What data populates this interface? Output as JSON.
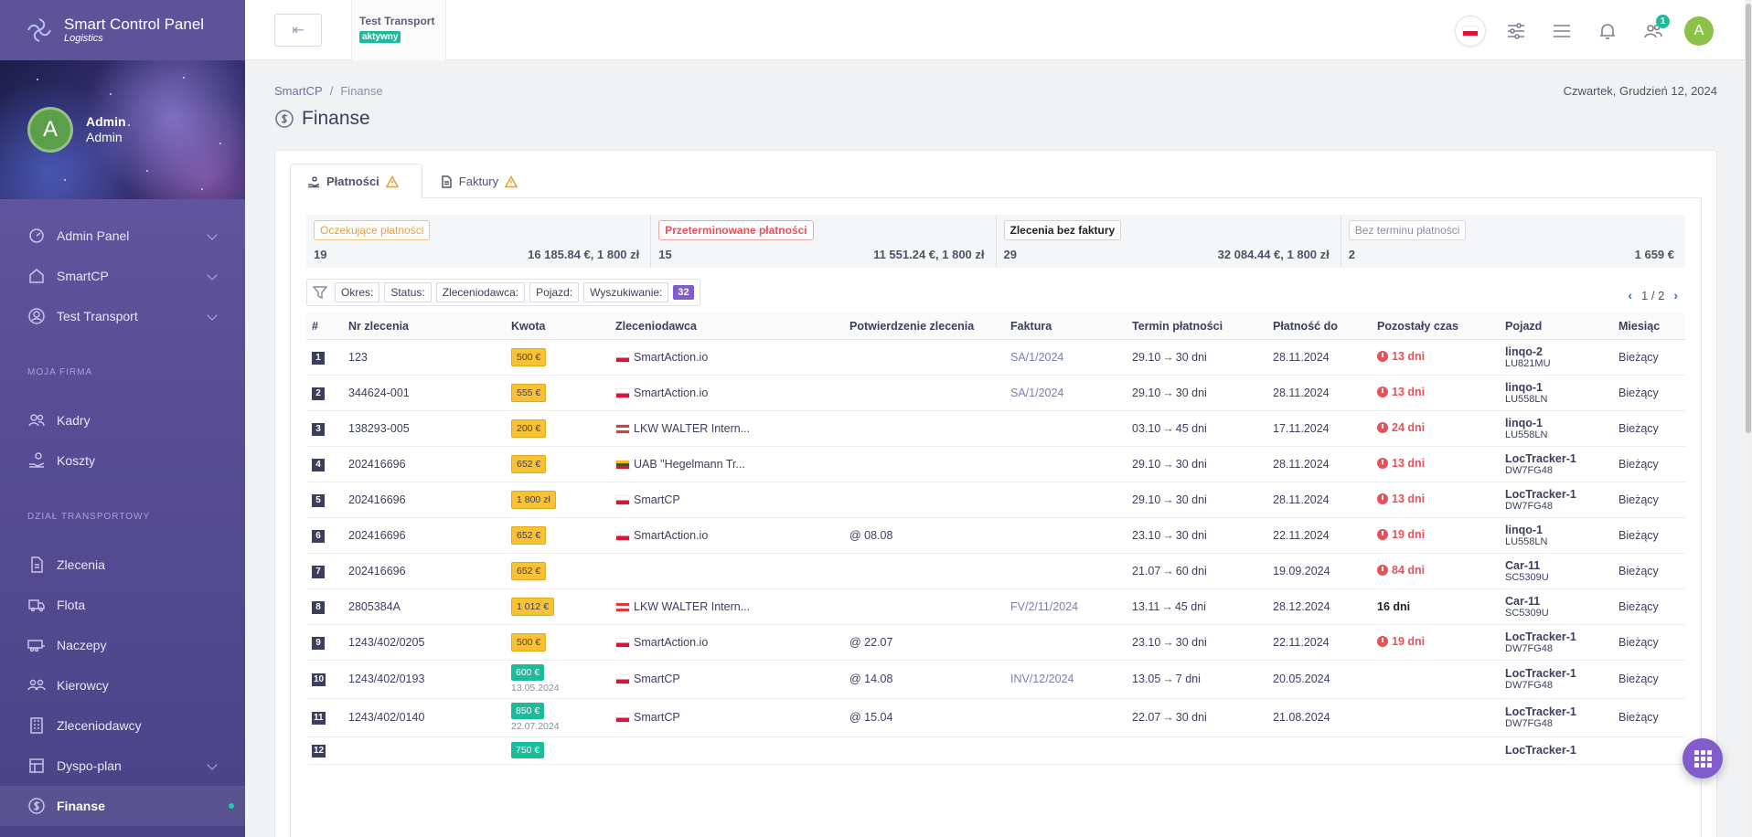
{
  "brand": {
    "title": "Smart Control Panel",
    "subtitle": "Logistics"
  },
  "profile": {
    "initial": "A",
    "name": "Admin",
    "role": "Admin"
  },
  "nav": {
    "top": [
      {
        "label": "Admin Panel",
        "icon": "dashboard-icon",
        "chevron": true
      },
      {
        "label": "SmartCP",
        "icon": "home-icon",
        "chevron": true
      },
      {
        "label": "Test Transport",
        "icon": "user-circle-icon",
        "chevron": true
      }
    ],
    "section1": "MOJA FIRMA",
    "firma": [
      {
        "label": "Kadry",
        "icon": "users-icon"
      },
      {
        "label": "Koszty",
        "icon": "hand-coins-icon"
      }
    ],
    "section2": "DZIAŁ TRANSPORTOWY",
    "transport": [
      {
        "label": "Zlecenia",
        "icon": "file-icon"
      },
      {
        "label": "Flota",
        "icon": "truck-icon"
      },
      {
        "label": "Naczepy",
        "icon": "trailer-icon"
      },
      {
        "label": "Kierowcy",
        "icon": "drivers-icon"
      },
      {
        "label": "Zleceniodawcy",
        "icon": "building-icon"
      },
      {
        "label": "Dyspo-plan",
        "icon": "plan-icon",
        "chevron": true
      },
      {
        "label": "Finanse",
        "icon": "dollar-icon",
        "active": true
      }
    ]
  },
  "topbar": {
    "back_icon": "⇤",
    "company_name": "Test Transport",
    "company_status": "aktywny",
    "notifications_badge": "1",
    "user_initial": "A"
  },
  "breadcrumb": {
    "root": "SmartCP",
    "sep": "/",
    "current": "Finanse"
  },
  "date": "Czwartek, Grudzień 12, 2024",
  "page_title": "Finanse",
  "tabs": [
    {
      "label": "Płatności",
      "active": true
    },
    {
      "label": "Faktury",
      "active": false
    }
  ],
  "summary": [
    {
      "label": "Oczekujące płatności",
      "count": "19",
      "amount": "16 185.84 €, 1 800 zł",
      "style": "orange"
    },
    {
      "label": "Przeterminowane płatności",
      "count": "15",
      "amount": "11 551.24 €, 1 800 zł",
      "style": "red"
    },
    {
      "label": "Zlecenia bez faktury",
      "count": "29",
      "amount": "32 084.44 €, 1 800 zł",
      "style": "dark"
    },
    {
      "label": "Bez terminu płatności",
      "count": "2",
      "amount": "1 659 €",
      "style": "gray"
    }
  ],
  "filters": {
    "chips": [
      "Okres:",
      "Status:",
      "Zleceniodawca:",
      "Pojazd:",
      "Wyszukiwanie:"
    ],
    "count": "32"
  },
  "pager": {
    "prev": "‹",
    "text": "1 / 2",
    "next": "›"
  },
  "columns": [
    "#",
    "Nr zlecenia",
    "Kwota",
    "Zleceniodawca",
    "Potwierdzenie zlecenia",
    "Faktura",
    "Termin płatności",
    "Płatność do",
    "Pozostały czas",
    "Pojazd",
    "Miesiąc"
  ],
  "rows": [
    {
      "n": "1",
      "order": "123",
      "amount": "500 €",
      "amount_style": "warn",
      "amount_date": "",
      "flag": "pl",
      "client": "SmartAction.io",
      "confirm": "",
      "invoice": "SA/1/2024",
      "term_from": "29.10",
      "term_days": "30 dni",
      "due": "28.11.2024",
      "remain": "13 dni",
      "remain_style": "late",
      "veh": "linqo-2",
      "plate": "LU821MU",
      "month": "Bieżący"
    },
    {
      "n": "2",
      "order": "344624-001",
      "amount": "555 €",
      "amount_style": "warn",
      "amount_date": "",
      "flag": "pl",
      "client": "SmartAction.io",
      "confirm": "",
      "invoice": "SA/1/2024",
      "term_from": "29.10",
      "term_days": "30 dni",
      "due": "28.11.2024",
      "remain": "13 dni",
      "remain_style": "late",
      "veh": "linqo-1",
      "plate": "LU558LN",
      "month": "Bieżący"
    },
    {
      "n": "3",
      "order": "138293-005",
      "amount": "200 €",
      "amount_style": "warn",
      "amount_date": "",
      "flag": "at",
      "client": "LKW WALTER Intern...",
      "confirm": "",
      "invoice": "",
      "term_from": "03.10",
      "term_days": "45 dni",
      "due": "17.11.2024",
      "remain": "24 dni",
      "remain_style": "late",
      "veh": "linqo-1",
      "plate": "LU558LN",
      "month": "Bieżący"
    },
    {
      "n": "4",
      "order": "202416696",
      "amount": "652 €",
      "amount_style": "warn",
      "amount_date": "",
      "flag": "lt",
      "client": "UAB \"Hegelmann Tr...",
      "confirm": "",
      "invoice": "",
      "term_from": "29.10",
      "term_days": "30 dni",
      "due": "28.11.2024",
      "remain": "13 dni",
      "remain_style": "late",
      "veh": "LocTracker-1",
      "plate": "DW7FG48",
      "month": "Bieżący"
    },
    {
      "n": "5",
      "order": "202416696",
      "amount": "1 800 zł",
      "amount_style": "warn",
      "amount_date": "",
      "flag": "pl",
      "client": "SmartCP",
      "confirm": "",
      "invoice": "",
      "term_from": "29.10",
      "term_days": "30 dni",
      "due": "28.11.2024",
      "remain": "13 dni",
      "remain_style": "late",
      "veh": "LocTracker-1",
      "plate": "DW7FG48",
      "month": "Bieżący"
    },
    {
      "n": "6",
      "order": "202416696",
      "amount": "652 €",
      "amount_style": "warn",
      "amount_date": "",
      "flag": "pl",
      "client": "SmartAction.io",
      "confirm": "@ 08.08",
      "invoice": "",
      "term_from": "23.10",
      "term_days": "30 dni",
      "due": "22.11.2024",
      "remain": "19 dni",
      "remain_style": "late",
      "veh": "linqo-1",
      "plate": "LU558LN",
      "month": "Bieżący"
    },
    {
      "n": "7",
      "order": "202416696",
      "amount": "652 €",
      "amount_style": "warn",
      "amount_date": "",
      "flag": "",
      "client": "",
      "confirm": "",
      "invoice": "",
      "term_from": "21.07",
      "term_days": "60 dni",
      "due": "19.09.2024",
      "remain": "84 dni",
      "remain_style": "late",
      "veh": "Car-11",
      "plate": "SC5309U",
      "month": "Bieżący"
    },
    {
      "n": "8",
      "order": "2805384A",
      "amount": "1 012 €",
      "amount_style": "warn",
      "amount_date": "",
      "flag": "at",
      "client": "LKW WALTER Intern...",
      "confirm": "",
      "invoice": "FV/2/11/2024",
      "term_from": "13.11",
      "term_days": "45 dni",
      "due": "28.12.2024",
      "remain": "16 dni",
      "remain_style": "neutral",
      "veh": "Car-11",
      "plate": "SC5309U",
      "month": "Bieżący"
    },
    {
      "n": "9",
      "order": "1243/402/0205",
      "amount": "500 €",
      "amount_style": "warn",
      "amount_date": "",
      "flag": "pl",
      "client": "SmartAction.io",
      "confirm": "@ 22.07",
      "invoice": "",
      "term_from": "23.10",
      "term_days": "30 dni",
      "due": "22.11.2024",
      "remain": "19 dni",
      "remain_style": "late",
      "veh": "LocTracker-1",
      "plate": "DW7FG48",
      "month": "Bieżący"
    },
    {
      "n": "10",
      "order": "1243/402/0193",
      "amount": "600 €",
      "amount_style": "ok",
      "amount_date": "13.05.2024",
      "flag": "pl",
      "client": "SmartCP",
      "confirm": "@ 14.08",
      "invoice": "INV/12/2024",
      "term_from": "13.05",
      "term_days": "7 dni",
      "due": "20.05.2024",
      "remain": "",
      "remain_style": "",
      "veh": "LocTracker-1",
      "plate": "DW7FG48",
      "month": "Bieżący"
    },
    {
      "n": "11",
      "order": "1243/402/0140",
      "amount": "850 €",
      "amount_style": "ok",
      "amount_date": "22.07.2024",
      "flag": "pl",
      "client": "SmartCP",
      "confirm": "@ 15.04",
      "invoice": "",
      "term_from": "22.07",
      "term_days": "30 dni",
      "due": "21.08.2024",
      "remain": "",
      "remain_style": "",
      "veh": "LocTracker-1",
      "plate": "DW7FG48",
      "month": "Bieżący"
    },
    {
      "n": "12",
      "order": "",
      "amount": "750 €",
      "amount_style": "ok",
      "amount_date": "",
      "flag": "",
      "client": "",
      "confirm": "",
      "invoice": "",
      "term_from": "",
      "term_days": "",
      "due": "",
      "remain": "",
      "remain_style": "",
      "veh": "LocTracker-1",
      "plate": "",
      "month": ""
    }
  ]
}
